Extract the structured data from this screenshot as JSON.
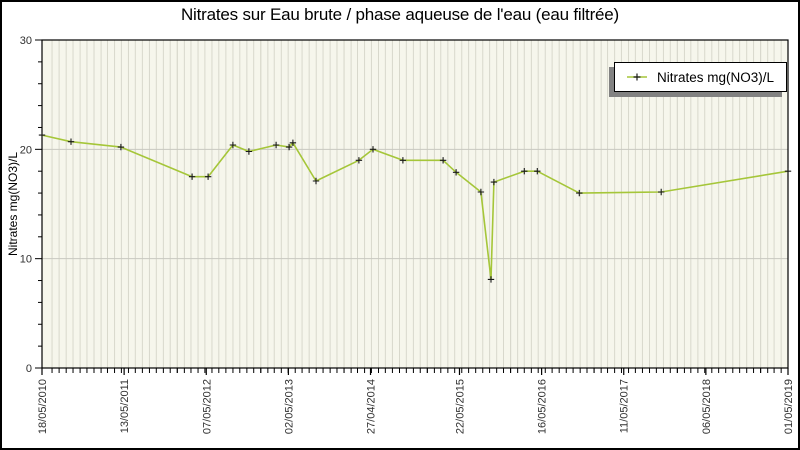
{
  "title": "Nitrates sur Eau brute / phase aqueuse de l'eau (eau filtrée)",
  "legend": {
    "label": "Nitrates mg(NO3)/L"
  },
  "colors": {
    "background": "#ffffff",
    "plot_bg": "#f6f6ec",
    "grid_minor": "#d8d8cc",
    "grid_major": "#c8c8c0",
    "axis": "#000000",
    "tick_label": "#303030",
    "title_text": "#000000",
    "line": "#a5c639",
    "marker": "#1a1a1a",
    "legend_bg": "#ffffff",
    "legend_border": "#000000",
    "legend_shadow": "#828282"
  },
  "chart_data": {
    "type": "line",
    "title": "Nitrates sur Eau brute / phase aqueuse de l'eau (eau filtrée)",
    "xlabel": "",
    "ylabel": "Nitrates mg(NO3)/L",
    "ylim": [
      0,
      30
    ],
    "y_major_ticks": [
      0,
      10,
      20,
      30
    ],
    "y_minor_tick_step": 2,
    "grid": true,
    "x_minor_grid_interval": "monthly",
    "x_range": [
      "2010-05-18",
      "2019-05-01"
    ],
    "x_ticks": [
      {
        "date": "2010-05-18",
        "label": "18/05/2010"
      },
      {
        "date": "2011-05-13",
        "label": "13/05/2011"
      },
      {
        "date": "2012-05-07",
        "label": "07/05/2012"
      },
      {
        "date": "2013-05-02",
        "label": "02/05/2013"
      },
      {
        "date": "2014-04-27",
        "label": "27/04/2014"
      },
      {
        "date": "2015-05-22",
        "label": "22/05/2015"
      },
      {
        "date": "2016-05-16",
        "label": "16/05/2016"
      },
      {
        "date": "2017-05-11",
        "label": "11/05/2017"
      },
      {
        "date": "2018-05-06",
        "label": "06/05/2018"
      },
      {
        "date": "2019-05-01",
        "label": "01/05/2019"
      }
    ],
    "legend_position": "top-right",
    "legend_entries": [
      "Nitrates mg(NO3)/L"
    ],
    "series": [
      {
        "name": "Nitrates mg(NO3)/L",
        "marker": "plus",
        "points": [
          {
            "date": "2010-05-18",
            "value": 21.3
          },
          {
            "date": "2010-09-22",
            "value": 20.7
          },
          {
            "date": "2011-04-29",
            "value": 20.2
          },
          {
            "date": "2012-03-06",
            "value": 17.5
          },
          {
            "date": "2012-05-15",
            "value": 17.5
          },
          {
            "date": "2012-09-01",
            "value": 20.4
          },
          {
            "date": "2012-11-10",
            "value": 19.8
          },
          {
            "date": "2013-03-09",
            "value": 20.4
          },
          {
            "date": "2013-05-05",
            "value": 20.2
          },
          {
            "date": "2013-05-22",
            "value": 20.6
          },
          {
            "date": "2013-08-31",
            "value": 17.1
          },
          {
            "date": "2014-03-07",
            "value": 19.0
          },
          {
            "date": "2014-05-08",
            "value": 20.0
          },
          {
            "date": "2014-09-16",
            "value": 19.0
          },
          {
            "date": "2015-03-11",
            "value": 19.0
          },
          {
            "date": "2015-05-07",
            "value": 17.9
          },
          {
            "date": "2015-08-24",
            "value": 16.1
          },
          {
            "date": "2015-10-07",
            "value": 8.1
          },
          {
            "date": "2015-10-20",
            "value": 17.0
          },
          {
            "date": "2016-03-01",
            "value": 18.0
          },
          {
            "date": "2016-04-27",
            "value": 18.0
          },
          {
            "date": "2016-10-28",
            "value": 16.0
          },
          {
            "date": "2017-10-22",
            "value": 16.1
          },
          {
            "date": "2019-05-01",
            "value": 18.0
          }
        ]
      }
    ]
  }
}
